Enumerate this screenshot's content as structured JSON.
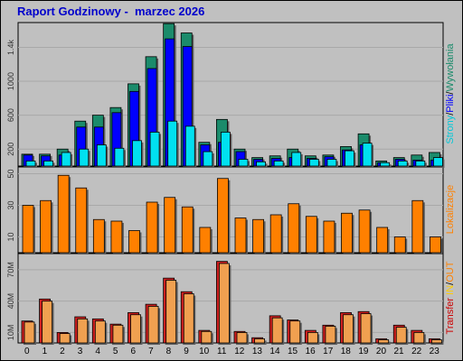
{
  "title": "Raport Godzinowy -  marzec 2026",
  "chart_data": [
    {
      "type": "bar",
      "panel": "top",
      "categories": [
        "0",
        "1",
        "2",
        "3",
        "4",
        "5",
        "6",
        "7",
        "8",
        "9",
        "10",
        "11",
        "12",
        "13",
        "14",
        "15",
        "16",
        "17",
        "18",
        "19",
        "20",
        "21",
        "22",
        "23"
      ],
      "yticks": [
        "200",
        "600",
        "1000",
        "1.4k"
      ],
      "ylim": [
        0,
        1650
      ],
      "series": [
        {
          "name": "Strony",
          "color": "#1b8b6b",
          "values": [
            140,
            140,
            200,
            530,
            600,
            690,
            970,
            1290,
            1680,
            1570,
            280,
            550,
            200,
            100,
            120,
            200,
            120,
            130,
            230,
            380,
            60,
            100,
            130,
            160
          ]
        },
        {
          "name": "Pliki",
          "color": "#0000ff",
          "values": [
            130,
            120,
            130,
            460,
            460,
            630,
            880,
            1150,
            1500,
            1410,
            250,
            280,
            170,
            80,
            90,
            100,
            90,
            110,
            190,
            250,
            40,
            80,
            70,
            70
          ]
        },
        {
          "name": "Wywołania",
          "color": "#00e0f0",
          "values": [
            60,
            60,
            160,
            200,
            250,
            210,
            300,
            400,
            530,
            470,
            170,
            400,
            80,
            50,
            60,
            160,
            80,
            80,
            180,
            270,
            40,
            60,
            60,
            100
          ]
        }
      ],
      "legend": [
        "Strony",
        "/",
        "Pliki",
        "/",
        "Wywołania"
      ]
    },
    {
      "type": "bar",
      "panel": "middle",
      "categories": [
        "0",
        "1",
        "2",
        "3",
        "4",
        "5",
        "6",
        "7",
        "8",
        "9",
        "10",
        "11",
        "12",
        "13",
        "14",
        "15",
        "16",
        "17",
        "18",
        "19",
        "20",
        "21",
        "22",
        "23"
      ],
      "yticks": [
        "10",
        "30",
        "50"
      ],
      "ylim": [
        0,
        52
      ],
      "series": [
        {
          "name": "Lokalizacje",
          "color": "#ff8000",
          "values": [
            30,
            33,
            49,
            41,
            21,
            20,
            14,
            32,
            35,
            29,
            16,
            47,
            22,
            21,
            24,
            31,
            23,
            20,
            25,
            27,
            16,
            10,
            33,
            10
          ]
        }
      ],
      "legend": [
        "Lokalizacje"
      ]
    },
    {
      "type": "bar",
      "panel": "bottom",
      "categories": [
        "0",
        "1",
        "2",
        "3",
        "4",
        "5",
        "6",
        "7",
        "8",
        "9",
        "10",
        "11",
        "12",
        "13",
        "14",
        "15",
        "16",
        "17",
        "18",
        "19",
        "20",
        "21",
        "22",
        "23"
      ],
      "yticks": [
        "10M",
        "40M",
        "70M"
      ],
      "ylim": [
        0,
        82
      ],
      "series": [
        {
          "name": "IN",
          "color": "#d02020",
          "values": [
            21,
            42,
            10,
            25,
            23,
            18,
            29,
            37,
            62,
            49,
            12,
            78,
            11,
            5,
            26,
            22,
            12,
            17,
            29,
            30,
            4,
            17,
            12,
            4
          ]
        },
        {
          "name": "OUT",
          "color": "#f0a050",
          "values": [
            20,
            40,
            9,
            23,
            21,
            17,
            27,
            35,
            60,
            47,
            11,
            76,
            10,
            4,
            24,
            21,
            10,
            16,
            27,
            28,
            3,
            15,
            10,
            3
          ]
        }
      ],
      "legend": [
        "Transfer",
        "IN",
        "/",
        "OUT"
      ]
    }
  ],
  "colors": {
    "legend_transfer": "#cc0000",
    "legend_in": "#ffcc00",
    "legend_out": "#ff8000",
    "legend_strony": "#1b8b6b",
    "legend_pliki": "#0000ff",
    "legend_wywolania": "#00c8d8",
    "legend_lokalizacje": "#ff8000"
  }
}
